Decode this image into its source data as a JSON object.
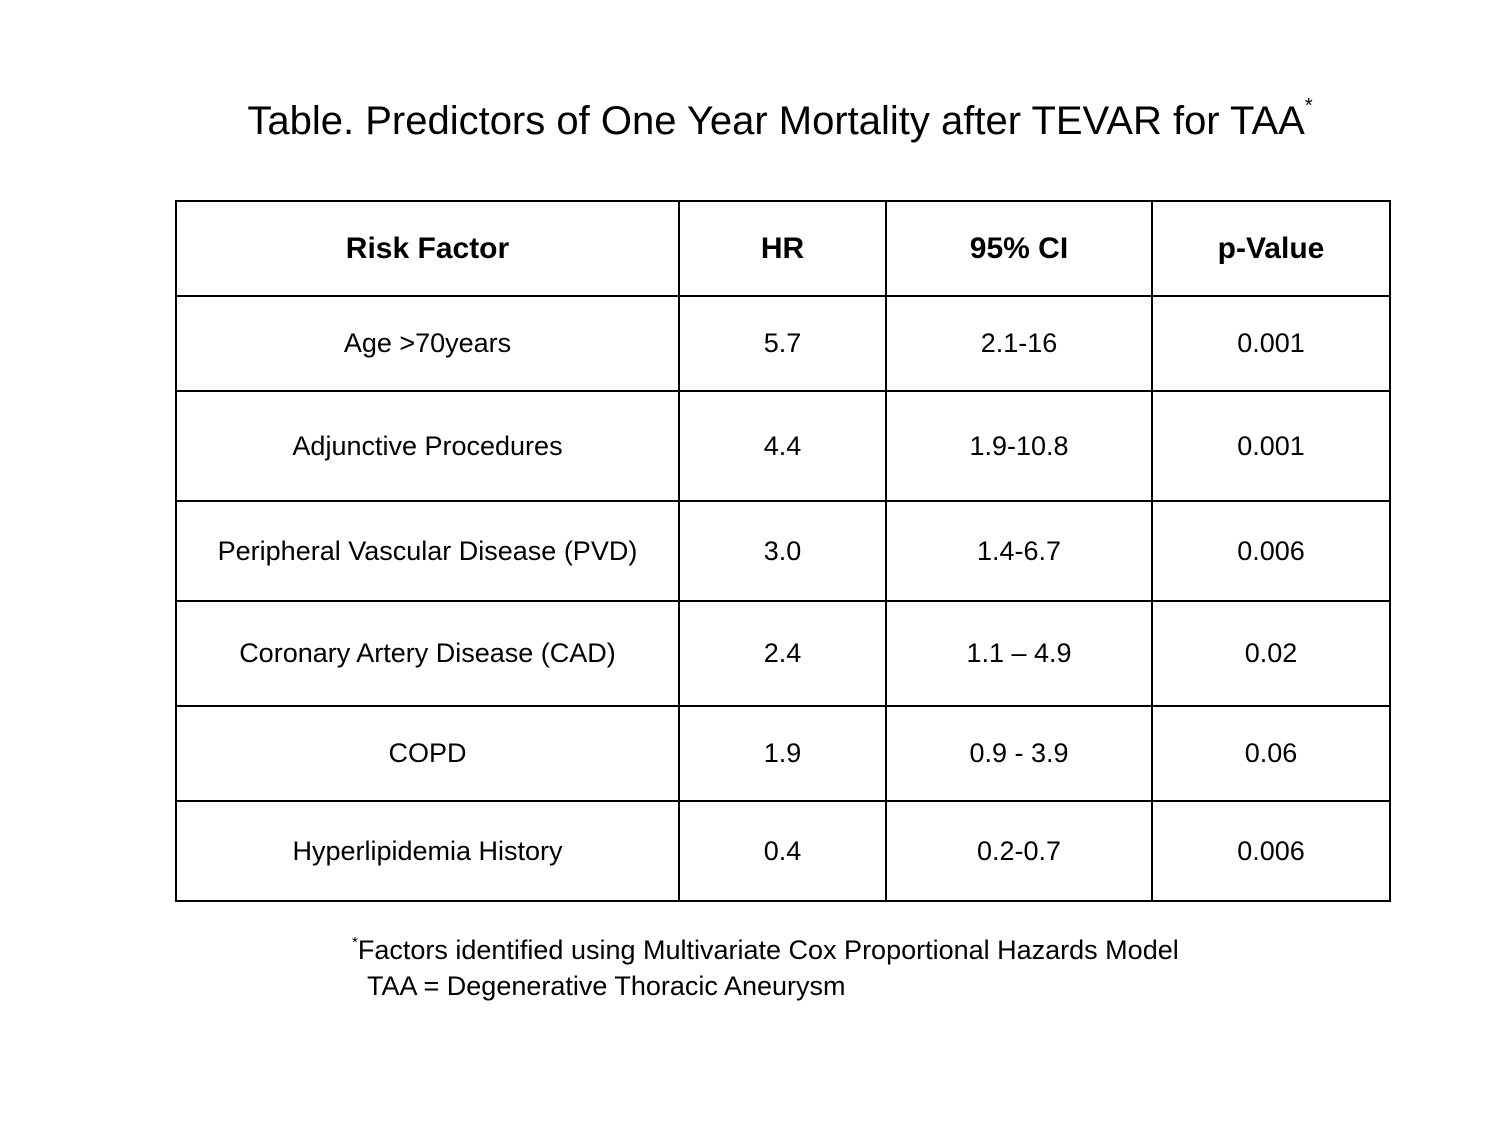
{
  "title": {
    "text": "Table. Predictors of One Year Mortality after TEVAR for TAA",
    "marker": "*"
  },
  "table": {
    "headers": [
      "Risk Factor",
      "HR",
      "95% CI",
      "p-Value"
    ],
    "rows": [
      [
        "Age >70years",
        "5.7",
        "2.1-16",
        "0.001"
      ],
      [
        "Adjunctive Procedures",
        "4.4",
        "1.9-10.8",
        "0.001"
      ],
      [
        "Peripheral Vascular Disease (PVD)",
        "3.0",
        "1.4-6.7",
        "0.006"
      ],
      [
        "Coronary Artery Disease (CAD)",
        "2.4",
        "1.1 – 4.9",
        "0.02"
      ],
      [
        "COPD",
        "1.9",
        "0.9 - 3.9",
        "0.06"
      ],
      [
        "Hyperlipidemia History",
        "0.4",
        "0.2-0.7",
        "0.006"
      ]
    ]
  },
  "footnotes": {
    "marker": "*",
    "line1": "Factors identified using Multivariate Cox Proportional Hazards Model",
    "line2": "TAA = Degenerative Thoracic Aneurysm"
  }
}
